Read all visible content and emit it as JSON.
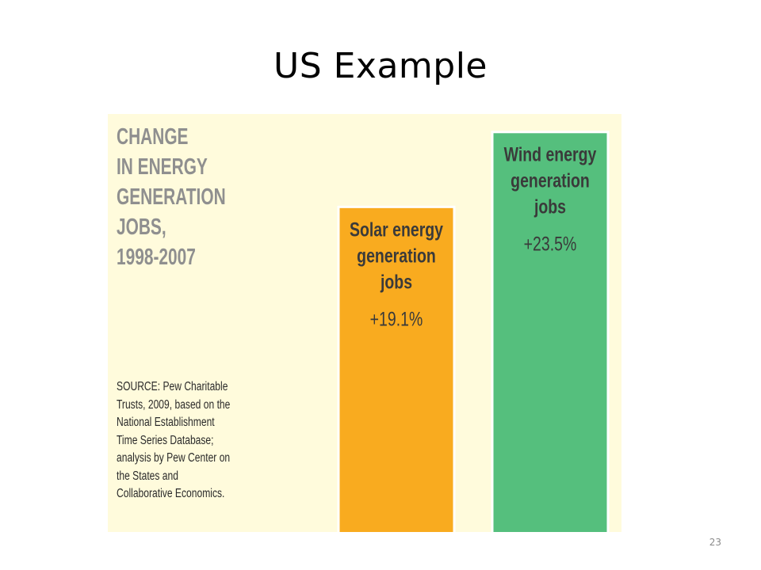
{
  "slide": {
    "title": "US Example",
    "page_number": "23"
  },
  "chart_data": {
    "type": "bar",
    "heading_lines": [
      "CHANGE",
      "IN ENERGY",
      "GENERATION",
      "JOBS,",
      "1998-2007"
    ],
    "source_lines": [
      "SOURCE: Pew Charitable",
      "Trusts, 2009, based on the",
      "National Establishment",
      "Time Series Database;",
      "analysis by Pew Center on",
      "the States and",
      "Collaborative Economics."
    ],
    "categories": [
      "Solar energy generation jobs",
      "Wind energy generation jobs"
    ],
    "values": [
      19.1,
      23.5
    ],
    "unit": "%",
    "bars": [
      {
        "label_lines": [
          "Solar energy",
          "generation",
          "jobs"
        ],
        "value_label": "+19.1%",
        "value": 19.1,
        "color": "#f9ab1f"
      },
      {
        "label_lines": [
          "Wind energy",
          "generation",
          "jobs"
        ],
        "value_label": "+23.5%",
        "value": 23.5,
        "color": "#55bf7d"
      }
    ],
    "panel_background": "#fffbdc",
    "heading_color": "#8f8f8f",
    "bar_text_color": "#3a3a3a"
  }
}
